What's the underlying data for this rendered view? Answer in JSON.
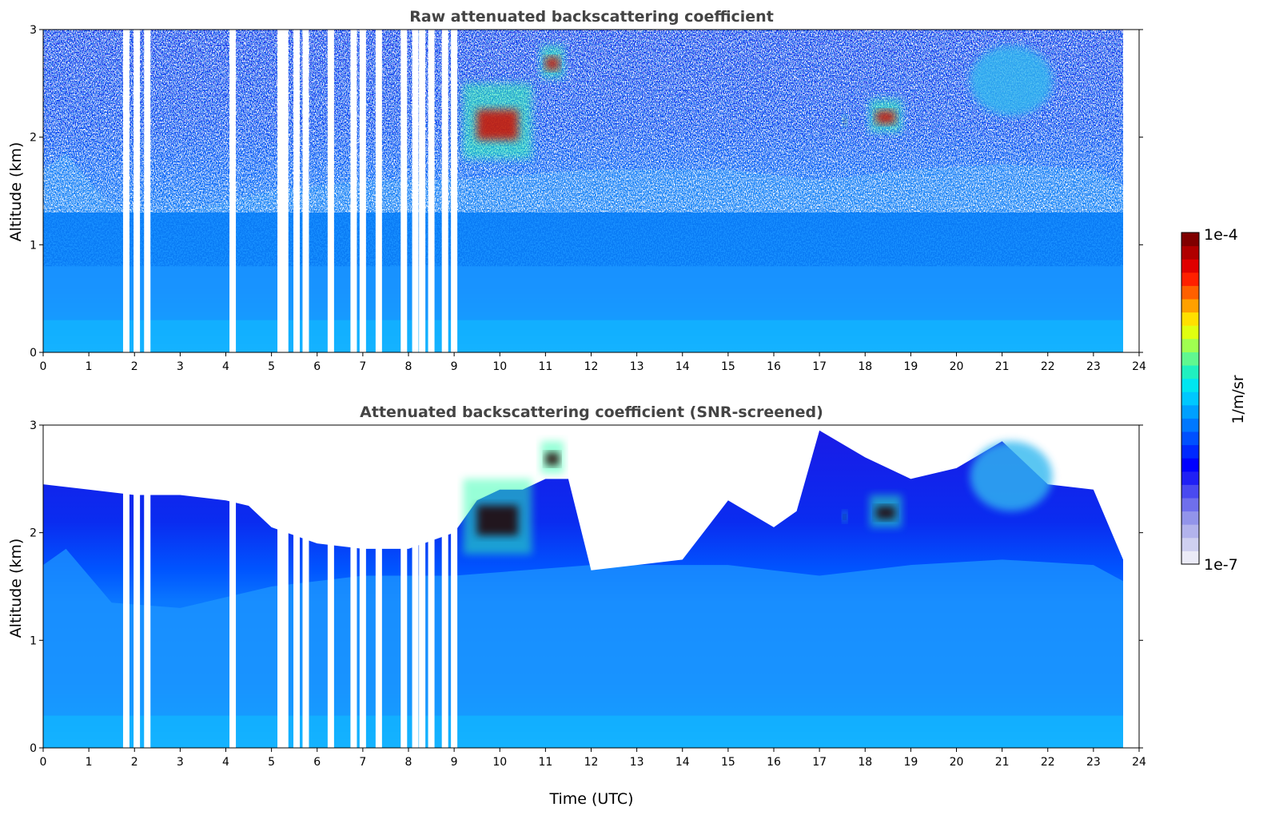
{
  "chart_data": [
    {
      "type": "heatmap",
      "title": "Raw attenuated backscattering coefficient",
      "xlabel": "",
      "ylabel": "Altitude (km)",
      "xlim": [
        0,
        24
      ],
      "ylim": [
        0,
        3
      ],
      "x_ticks": [
        "0",
        "1",
        "2",
        "3",
        "4",
        "5",
        "6",
        "7",
        "8",
        "9",
        "10",
        "11",
        "12",
        "13",
        "14",
        "15",
        "16",
        "17",
        "18",
        "19",
        "20",
        "21",
        "22",
        "23",
        "24"
      ],
      "y_ticks": [
        "0",
        "1",
        "2",
        "3"
      ],
      "data_end_time": 23.65,
      "missing_profiles_time": [
        1.82,
        2.05,
        2.28,
        4.15,
        5.2,
        5.3,
        5.55,
        5.75,
        6.3,
        6.8,
        7.0,
        7.35,
        7.9,
        8.15,
        8.3,
        8.5,
        8.8,
        9.0
      ],
      "features": [
        {
          "kind": "cloud",
          "time_range": [
            9.2,
            10.7
          ],
          "altitude_km": [
            1.8,
            2.5
          ],
          "level": "high"
        },
        {
          "kind": "cloud",
          "time_range": [
            10.9,
            11.4
          ],
          "altitude_km": [
            2.55,
            2.85
          ],
          "level": "high"
        },
        {
          "kind": "cloud",
          "time_range": [
            17.5,
            17.6
          ],
          "altitude_km": [
            2.1,
            2.2
          ],
          "level": "high"
        },
        {
          "kind": "cloud",
          "time_range": [
            18.1,
            18.8
          ],
          "altitude_km": [
            2.05,
            2.35
          ],
          "level": "high"
        },
        {
          "kind": "aerosol_layer",
          "time_range": [
            20.3,
            22.1
          ],
          "altitude_km": [
            2.2,
            2.85
          ],
          "level": "medium"
        },
        {
          "kind": "boundary_layer_top",
          "time": [
            0,
            0.5,
            1.5,
            3,
            5,
            7,
            9,
            12,
            15,
            17,
            19,
            21,
            23,
            23.65
          ],
          "altitude_km": [
            1.7,
            1.85,
            1.35,
            1.3,
            1.5,
            1.6,
            1.6,
            1.7,
            1.7,
            1.6,
            1.7,
            1.75,
            1.7,
            1.55
          ]
        }
      ]
    },
    {
      "type": "heatmap",
      "title": "Attenuated backscattering coefficient (SNR-screened)",
      "xlabel": "Time (UTC)",
      "ylabel": "Altitude (km)",
      "xlim": [
        0,
        24
      ],
      "ylim": [
        0,
        3
      ],
      "x_ticks": [
        "0",
        "1",
        "2",
        "3",
        "4",
        "5",
        "6",
        "7",
        "8",
        "9",
        "10",
        "11",
        "12",
        "13",
        "14",
        "15",
        "16",
        "17",
        "18",
        "19",
        "20",
        "21",
        "22",
        "23",
        "24"
      ],
      "y_ticks": [
        "0",
        "1",
        "2",
        "3"
      ],
      "data_end_time": 23.65,
      "screened_top_time": [
        0,
        1,
        2,
        3,
        4,
        4.5,
        5,
        6,
        7,
        8,
        9,
        9.5,
        10,
        10.5,
        11,
        11.5,
        12,
        13,
        14,
        15,
        16,
        16.5,
        17,
        18,
        19,
        20,
        21,
        22,
        23,
        23.65
      ],
      "screened_top_km": [
        2.45,
        2.4,
        2.35,
        2.35,
        2.3,
        2.25,
        2.05,
        1.9,
        1.85,
        1.85,
        2.0,
        2.3,
        2.4,
        2.4,
        2.5,
        2.5,
        1.65,
        1.7,
        1.75,
        2.3,
        2.05,
        2.2,
        2.95,
        2.7,
        2.5,
        2.6,
        2.85,
        2.45,
        2.4,
        1.75
      ]
    }
  ],
  "colorbar": {
    "label": "1/m/sr",
    "max_label": "1e-4",
    "min_label": "1e-7",
    "colors": [
      "#ebebf7",
      "#cfd0f0",
      "#b2b3ec",
      "#9294ea",
      "#6f6fec",
      "#4a4af0",
      "#2020f5",
      "#0000ff",
      "#0028ff",
      "#0050ff",
      "#0078ff",
      "#00a0ff",
      "#00c8ff",
      "#00e6f0",
      "#20f0c0",
      "#60f890",
      "#a0ff50",
      "#e0ff10",
      "#ffe000",
      "#ffa000",
      "#ff6000",
      "#ff2000",
      "#e00000",
      "#b00000",
      "#800000"
    ]
  }
}
